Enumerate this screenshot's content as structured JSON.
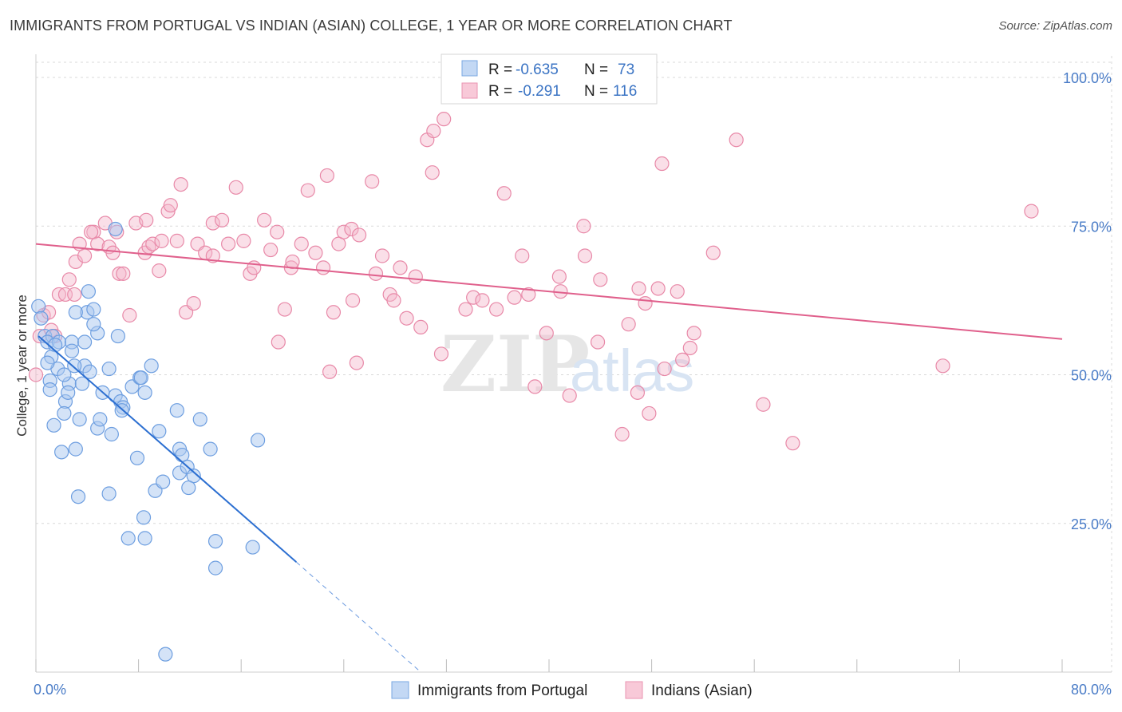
{
  "title": "IMMIGRANTS FROM PORTUGAL VS INDIAN (ASIAN) COLLEGE, 1 YEAR OR MORE CORRELATION CHART",
  "source": "Source: ZipAtlas.com",
  "watermark": {
    "zip": "ZIP",
    "atlas": "atlas"
  },
  "legend": {
    "rows": [
      {
        "r_label": "R =",
        "r_value": "-0.635",
        "n_label": "N =",
        "n_value": "73"
      },
      {
        "r_label": "R =",
        "r_value": "-0.291",
        "n_label": "N =",
        "n_value": "116"
      }
    ]
  },
  "bottom_legend": {
    "series1": "Immigrants from Portugal",
    "series2": "Indians (Asian)"
  },
  "colors": {
    "blue_fill": "#a9c8f0",
    "blue_stroke": "#6d9ee0",
    "blue_line": "#2c6fd1",
    "pink_fill": "#f5b8cc",
    "pink_stroke": "#e889a8",
    "pink_line": "#e0608c",
    "grid": "#d9d9d9",
    "tick_text": "#4a7cc7"
  },
  "chart_data": {
    "type": "scatter",
    "title": "IMMIGRANTS FROM PORTUGAL VS INDIAN (ASIAN) COLLEGE, 1 YEAR OR MORE CORRELATION CHART",
    "xlabel": "",
    "ylabel": "College, 1 year or more",
    "xlim": [
      0,
      80
    ],
    "ylim": [
      0,
      100
    ],
    "x_tick_labels": [
      "0.0%",
      "80.0%"
    ],
    "y_ticks": [
      25,
      50,
      75,
      100
    ],
    "y_tick_labels": [
      "25.0%",
      "50.0%",
      "75.0%",
      "100.0%"
    ],
    "series": [
      {
        "name": "Immigrants from Portugal",
        "R": -0.635,
        "N": 73,
        "trend": {
          "x0": 0.2,
          "y0": 56.5,
          "x1": 20.3,
          "y1": 18.5,
          "dash_to_x": 30.0,
          "dash_to_y": 0.0
        },
        "points": [
          [
            0.2,
            61.5
          ],
          [
            0.4,
            59.5
          ],
          [
            0.7,
            56.5
          ],
          [
            1.3,
            56.5
          ],
          [
            0.9,
            55.5
          ],
          [
            1.8,
            55.5
          ],
          [
            2.8,
            55.5
          ],
          [
            1.5,
            55.0
          ],
          [
            1.1,
            49.0
          ],
          [
            2.6,
            48.5
          ],
          [
            3.6,
            48.5
          ],
          [
            1.1,
            47.5
          ],
          [
            2.3,
            45.5
          ],
          [
            3.4,
            42.5
          ],
          [
            2.2,
            43.5
          ],
          [
            1.4,
            41.5
          ],
          [
            4.8,
            41.0
          ],
          [
            2.0,
            37.0
          ],
          [
            3.1,
            37.5
          ],
          [
            5.0,
            42.5
          ],
          [
            3.3,
            29.5
          ],
          [
            5.7,
            30.0
          ],
          [
            6.4,
            56.5
          ],
          [
            4.8,
            57.0
          ],
          [
            4.5,
            58.5
          ],
          [
            4.0,
            60.5
          ],
          [
            3.1,
            60.5
          ],
          [
            4.1,
            64.0
          ],
          [
            4.5,
            61.0
          ],
          [
            6.2,
            74.5
          ],
          [
            3.8,
            51.5
          ],
          [
            4.2,
            50.5
          ],
          [
            5.7,
            51.0
          ],
          [
            3.0,
            51.5
          ],
          [
            1.7,
            51.0
          ],
          [
            2.8,
            54.0
          ],
          [
            5.2,
            47.0
          ],
          [
            6.2,
            46.5
          ],
          [
            6.6,
            45.5
          ],
          [
            6.8,
            44.5
          ],
          [
            6.7,
            44.0
          ],
          [
            7.5,
            48.0
          ],
          [
            8.1,
            49.5
          ],
          [
            8.5,
            47.0
          ],
          [
            9.0,
            51.5
          ],
          [
            8.2,
            49.5
          ],
          [
            11.0,
            44.0
          ],
          [
            12.8,
            42.5
          ],
          [
            11.2,
            37.5
          ],
          [
            11.4,
            36.5
          ],
          [
            7.9,
            36.0
          ],
          [
            9.6,
            40.5
          ],
          [
            13.6,
            37.5
          ],
          [
            17.3,
            39.0
          ],
          [
            9.3,
            30.5
          ],
          [
            9.9,
            32.0
          ],
          [
            11.2,
            33.5
          ],
          [
            11.8,
            34.5
          ],
          [
            12.3,
            33.0
          ],
          [
            11.9,
            31.0
          ],
          [
            7.2,
            22.5
          ],
          [
            8.5,
            22.5
          ],
          [
            8.4,
            26.0
          ],
          [
            14.0,
            22.0
          ],
          [
            16.9,
            21.0
          ],
          [
            14.0,
            17.5
          ],
          [
            10.1,
            3.0
          ],
          [
            1.2,
            53.0
          ],
          [
            2.2,
            50.0
          ],
          [
            3.8,
            55.5
          ],
          [
            0.9,
            52.0
          ],
          [
            2.5,
            47.0
          ],
          [
            5.9,
            40.0
          ]
        ]
      },
      {
        "name": "Indians (Asian)",
        "R": -0.291,
        "N": 116,
        "trend": {
          "x0": 0.0,
          "y0": 72.0,
          "x1": 80.0,
          "y1": 56.0
        },
        "points": [
          [
            0.0,
            50.0
          ],
          [
            0.3,
            56.5
          ],
          [
            0.6,
            60.0
          ],
          [
            1.0,
            60.5
          ],
          [
            1.2,
            57.5
          ],
          [
            1.5,
            56.5
          ],
          [
            1.8,
            63.5
          ],
          [
            2.3,
            63.5
          ],
          [
            2.6,
            66.0
          ],
          [
            3.0,
            63.5
          ],
          [
            3.1,
            69.0
          ],
          [
            3.4,
            72.0
          ],
          [
            3.8,
            70.0
          ],
          [
            4.5,
            74.0
          ],
          [
            4.8,
            72.0
          ],
          [
            5.4,
            75.5
          ],
          [
            5.7,
            71.5
          ],
          [
            6.3,
            74.0
          ],
          [
            6.5,
            67.0
          ],
          [
            6.8,
            67.0
          ],
          [
            7.3,
            60.0
          ],
          [
            7.8,
            75.5
          ],
          [
            8.5,
            70.5
          ],
          [
            8.8,
            71.5
          ],
          [
            9.1,
            72.0
          ],
          [
            9.6,
            67.5
          ],
          [
            10.3,
            77.5
          ],
          [
            10.5,
            78.5
          ],
          [
            11.0,
            72.5
          ],
          [
            11.3,
            82.0
          ],
          [
            11.7,
            60.5
          ],
          [
            12.3,
            62.0
          ],
          [
            12.6,
            72.0
          ],
          [
            13.2,
            70.5
          ],
          [
            13.8,
            75.5
          ],
          [
            14.5,
            76.0
          ],
          [
            15.0,
            72.0
          ],
          [
            15.6,
            81.5
          ],
          [
            16.2,
            72.5
          ],
          [
            16.7,
            67.0
          ],
          [
            17.0,
            68.0
          ],
          [
            17.8,
            76.0
          ],
          [
            18.3,
            71.0
          ],
          [
            18.8,
            74.0
          ],
          [
            19.4,
            61.0
          ],
          [
            19.9,
            68.0
          ],
          [
            20.7,
            72.0
          ],
          [
            21.2,
            81.0
          ],
          [
            21.8,
            70.5
          ],
          [
            22.4,
            68.0
          ],
          [
            22.7,
            83.5
          ],
          [
            23.2,
            60.5
          ],
          [
            23.6,
            72.0
          ],
          [
            24.0,
            74.0
          ],
          [
            24.6,
            74.5
          ],
          [
            25.2,
            73.5
          ],
          [
            26.2,
            82.5
          ],
          [
            27.0,
            70.0
          ],
          [
            27.6,
            63.5
          ],
          [
            27.9,
            62.5
          ],
          [
            28.4,
            68.0
          ],
          [
            28.9,
            59.5
          ],
          [
            29.6,
            66.5
          ],
          [
            30.0,
            58.0
          ],
          [
            30.5,
            89.5
          ],
          [
            31.0,
            91.0
          ],
          [
            31.8,
            93.0
          ],
          [
            30.9,
            84.0
          ],
          [
            31.6,
            53.5
          ],
          [
            33.5,
            61.0
          ],
          [
            34.1,
            63.0
          ],
          [
            34.8,
            62.5
          ],
          [
            35.9,
            61.0
          ],
          [
            36.5,
            80.5
          ],
          [
            37.3,
            63.0
          ],
          [
            37.9,
            70.0
          ],
          [
            38.4,
            63.5
          ],
          [
            38.9,
            48.0
          ],
          [
            39.8,
            57.0
          ],
          [
            40.8,
            66.5
          ],
          [
            40.9,
            64.0
          ],
          [
            41.6,
            46.5
          ],
          [
            42.7,
            75.0
          ],
          [
            42.8,
            70.0
          ],
          [
            43.8,
            55.5
          ],
          [
            44.0,
            66.0
          ],
          [
            45.7,
            40.0
          ],
          [
            46.2,
            58.5
          ],
          [
            46.9,
            47.0
          ],
          [
            47.0,
            64.5
          ],
          [
            47.5,
            62.0
          ],
          [
            47.8,
            43.5
          ],
          [
            48.5,
            64.5
          ],
          [
            48.8,
            85.5
          ],
          [
            49.0,
            51.0
          ],
          [
            50.0,
            64.0
          ],
          [
            50.4,
            52.5
          ],
          [
            51.0,
            54.5
          ],
          [
            51.3,
            57.0
          ],
          [
            52.8,
            70.5
          ],
          [
            54.6,
            89.5
          ],
          [
            56.7,
            45.0
          ],
          [
            59.0,
            38.5
          ],
          [
            70.7,
            51.5
          ],
          [
            77.6,
            77.5
          ],
          [
            24.7,
            62.5
          ],
          [
            8.6,
            76.0
          ],
          [
            13.8,
            70.0
          ],
          [
            18.9,
            55.5
          ],
          [
            20.0,
            69.0
          ],
          [
            22.9,
            50.5
          ],
          [
            25.0,
            52.0
          ],
          [
            4.3,
            74.0
          ],
          [
            6.0,
            70.5
          ],
          [
            9.8,
            72.5
          ],
          [
            26.5,
            67.0
          ]
        ]
      }
    ]
  }
}
